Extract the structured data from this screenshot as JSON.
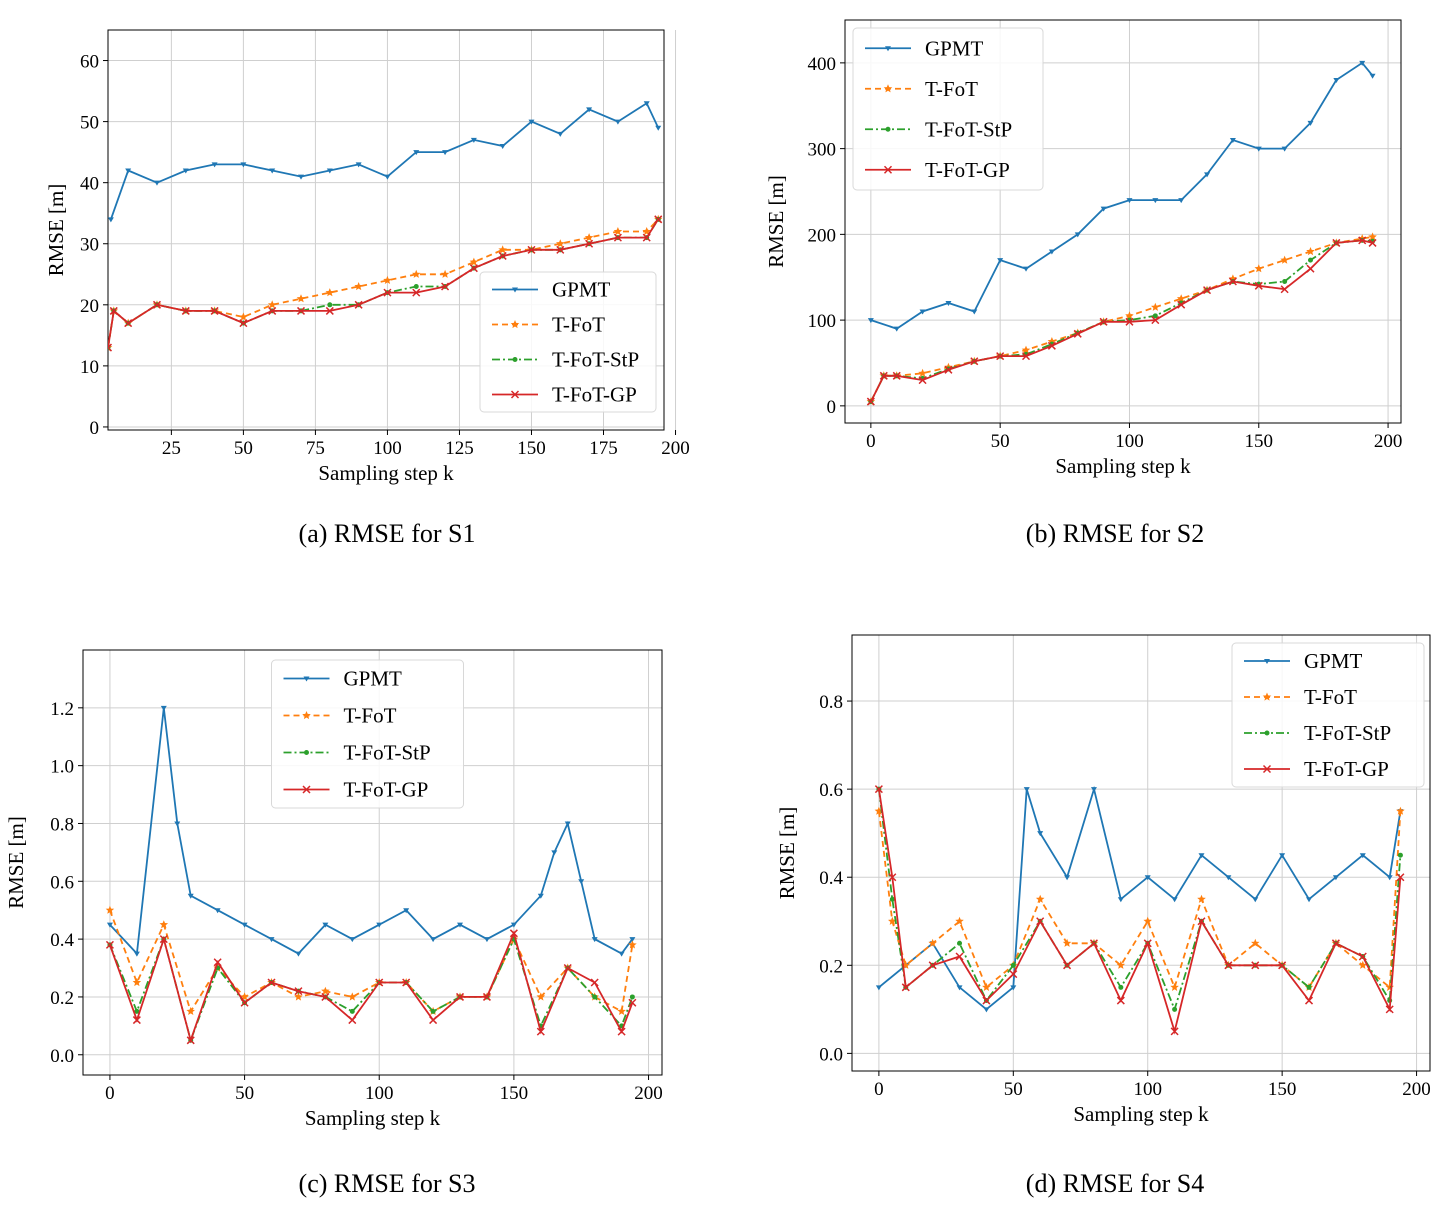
{
  "chart_data": [
    {
      "type": "line",
      "caption": "(a) RMSE for S1",
      "xlabel": "Sampling step  k",
      "ylabel": "RMSE [m]",
      "xlim": [
        3,
        196
      ],
      "ylim": [
        -0.5,
        65
      ],
      "xticks": [
        25,
        50,
        75,
        100,
        125,
        150,
        175,
        200
      ],
      "yticks": [
        0,
        10,
        20,
        30,
        40,
        50,
        60
      ],
      "legend": "lower-right",
      "grid": true,
      "colors": {
        "GPMT": "#1f77b4",
        "T-FoT": "#ff7f0e",
        "T-FoT-StP": "#2ca02c",
        "T-FoT-GP": "#d62728"
      },
      "series": [
        {
          "name": "GPMT",
          "x": [
            4,
            10,
            20,
            30,
            40,
            50,
            60,
            70,
            80,
            90,
            100,
            110,
            120,
            130,
            140,
            150,
            160,
            170,
            180,
            190,
            194
          ],
          "values": [
            34,
            42,
            40,
            42,
            43,
            43,
            42,
            41,
            42,
            43,
            41,
            45,
            45,
            47,
            46,
            50,
            48,
            52,
            50,
            53,
            49
          ]
        },
        {
          "name": "T-FoT",
          "x": [
            3,
            5,
            10,
            20,
            30,
            40,
            50,
            60,
            70,
            80,
            90,
            100,
            110,
            120,
            130,
            140,
            150,
            160,
            170,
            180,
            190,
            194
          ],
          "values": [
            13,
            19,
            17,
            20,
            19,
            19,
            18,
            20,
            21,
            22,
            23,
            24,
            25,
            25,
            27,
            29,
            29,
            30,
            31,
            32,
            32,
            34
          ]
        },
        {
          "name": "T-FoT-StP",
          "x": [
            3,
            5,
            10,
            20,
            30,
            40,
            50,
            60,
            70,
            80,
            90,
            100,
            110,
            120,
            130,
            140,
            150,
            160,
            170,
            180,
            190,
            194
          ],
          "values": [
            13,
            19,
            17,
            20,
            19,
            19,
            17,
            19,
            19,
            20,
            20,
            22,
            23,
            23,
            26,
            28,
            29,
            29,
            30,
            31,
            31,
            34
          ]
        },
        {
          "name": "T-FoT-GP",
          "x": [
            3,
            5,
            10,
            20,
            30,
            40,
            50,
            60,
            70,
            80,
            90,
            100,
            110,
            120,
            130,
            140,
            150,
            160,
            170,
            180,
            190,
            194
          ],
          "values": [
            13,
            19,
            17,
            20,
            19,
            19,
            17,
            19,
            19,
            19,
            20,
            22,
            22,
            23,
            26,
            28,
            29,
            29,
            30,
            31,
            31,
            34
          ]
        }
      ]
    },
    {
      "type": "line",
      "caption": "(b) RMSE for S2",
      "xlabel": "Sampling step  k",
      "ylabel": "RMSE [m]",
      "xlim": [
        -10,
        205
      ],
      "ylim": [
        -20,
        450
      ],
      "xticks": [
        0,
        50,
        100,
        150,
        200
      ],
      "yticks": [
        0,
        100,
        200,
        300,
        400
      ],
      "legend": "top-left",
      "grid": true,
      "colors": {
        "GPMT": "#1f77b4",
        "T-FoT": "#ff7f0e",
        "T-FoT-StP": "#2ca02c",
        "T-FoT-GP": "#d62728"
      },
      "series": [
        {
          "name": "GPMT",
          "x": [
            0,
            10,
            20,
            30,
            40,
            50,
            60,
            70,
            80,
            90,
            100,
            110,
            120,
            130,
            140,
            150,
            160,
            170,
            180,
            190,
            194
          ],
          "values": [
            100,
            90,
            110,
            120,
            110,
            170,
            160,
            180,
            200,
            230,
            240,
            240,
            240,
            270,
            310,
            300,
            300,
            330,
            380,
            400,
            385
          ]
        },
        {
          "name": "T-FoT",
          "x": [
            0,
            5,
            10,
            20,
            30,
            40,
            50,
            60,
            70,
            80,
            90,
            100,
            110,
            120,
            130,
            140,
            150,
            160,
            170,
            180,
            190,
            194
          ],
          "values": [
            5,
            35,
            35,
            38,
            45,
            52,
            58,
            65,
            75,
            85,
            98,
            105,
            115,
            125,
            135,
            148,
            160,
            170,
            180,
            190,
            195,
            197
          ]
        },
        {
          "name": "T-FoT-StP",
          "x": [
            0,
            5,
            10,
            20,
            30,
            40,
            50,
            60,
            70,
            80,
            90,
            100,
            110,
            120,
            130,
            140,
            150,
            160,
            170,
            180,
            190,
            194
          ],
          "values": [
            5,
            35,
            35,
            32,
            43,
            52,
            58,
            60,
            72,
            85,
            98,
            100,
            105,
            120,
            135,
            145,
            142,
            145,
            170,
            190,
            193,
            192
          ]
        },
        {
          "name": "T-FoT-GP",
          "x": [
            0,
            5,
            10,
            20,
            30,
            40,
            50,
            60,
            70,
            80,
            90,
            100,
            110,
            120,
            130,
            140,
            150,
            160,
            170,
            180,
            190,
            194
          ],
          "values": [
            5,
            35,
            35,
            30,
            42,
            52,
            58,
            58,
            70,
            84,
            98,
            98,
            100,
            118,
            135,
            145,
            140,
            136,
            160,
            190,
            193,
            190
          ]
        }
      ]
    },
    {
      "type": "line",
      "caption": "(c) RMSE for S3",
      "xlabel": "Sampling step  k",
      "ylabel": "RMSE [m]",
      "xlim": [
        -10,
        205
      ],
      "ylim": [
        -0.07,
        1.4
      ],
      "xticks": [
        0,
        50,
        100,
        150,
        200
      ],
      "yticks": [
        0.0,
        0.2,
        0.4,
        0.6,
        0.8,
        1.0,
        1.2
      ],
      "ytick_labels": [
        "0.0",
        "0.2",
        "0.4",
        "0.6",
        "0.8",
        "1.0",
        "1.2"
      ],
      "legend": "top-center",
      "grid": true,
      "colors": {
        "GPMT": "#1f77b4",
        "T-FoT": "#ff7f0e",
        "T-FoT-StP": "#2ca02c",
        "T-FoT-GP": "#d62728"
      },
      "series": [
        {
          "name": "GPMT",
          "x": [
            0,
            10,
            20,
            25,
            30,
            40,
            50,
            60,
            70,
            80,
            90,
            100,
            110,
            120,
            130,
            140,
            150,
            160,
            165,
            170,
            175,
            180,
            190,
            194
          ],
          "values": [
            0.45,
            0.35,
            1.2,
            0.8,
            0.55,
            0.5,
            0.45,
            0.4,
            0.35,
            0.45,
            0.4,
            0.45,
            0.5,
            0.4,
            0.45,
            0.4,
            0.45,
            0.55,
            0.7,
            0.8,
            0.6,
            0.4,
            0.35,
            0.4
          ]
        },
        {
          "name": "T-FoT",
          "x": [
            0,
            10,
            20,
            30,
            40,
            50,
            60,
            70,
            80,
            90,
            100,
            110,
            120,
            130,
            140,
            150,
            160,
            170,
            180,
            190,
            194
          ],
          "values": [
            0.5,
            0.25,
            0.45,
            0.15,
            0.3,
            0.2,
            0.25,
            0.2,
            0.22,
            0.2,
            0.25,
            0.25,
            0.15,
            0.2,
            0.2,
            0.4,
            0.2,
            0.3,
            0.2,
            0.15,
            0.38
          ]
        },
        {
          "name": "T-FoT-StP",
          "x": [
            0,
            10,
            20,
            30,
            40,
            50,
            60,
            70,
            80,
            90,
            100,
            110,
            120,
            130,
            140,
            150,
            160,
            170,
            180,
            190,
            194
          ],
          "values": [
            0.38,
            0.15,
            0.4,
            0.05,
            0.3,
            0.18,
            0.25,
            0.22,
            0.2,
            0.15,
            0.25,
            0.25,
            0.15,
            0.2,
            0.2,
            0.4,
            0.1,
            0.3,
            0.2,
            0.1,
            0.2
          ]
        },
        {
          "name": "T-FoT-GP",
          "x": [
            0,
            10,
            20,
            30,
            40,
            50,
            60,
            70,
            80,
            90,
            100,
            110,
            120,
            130,
            140,
            150,
            160,
            170,
            180,
            190,
            194
          ],
          "values": [
            0.38,
            0.12,
            0.4,
            0.05,
            0.32,
            0.18,
            0.25,
            0.22,
            0.2,
            0.12,
            0.25,
            0.25,
            0.12,
            0.2,
            0.2,
            0.42,
            0.08,
            0.3,
            0.25,
            0.08,
            0.18
          ]
        }
      ]
    },
    {
      "type": "line",
      "caption": "(d) RMSE for S4",
      "xlabel": "Sampling step  k",
      "ylabel": "RMSE [m]",
      "xlim": [
        -10,
        205
      ],
      "ylim": [
        -0.04,
        0.95
      ],
      "xticks": [
        0,
        50,
        100,
        150,
        200
      ],
      "yticks": [
        0.0,
        0.2,
        0.4,
        0.6,
        0.8
      ],
      "ytick_labels": [
        "0.0",
        "0.2",
        "0.4",
        "0.6",
        "0.8"
      ],
      "legend": "top-right",
      "grid": true,
      "colors": {
        "GPMT": "#1f77b4",
        "T-FoT": "#ff7f0e",
        "T-FoT-StP": "#2ca02c",
        "T-FoT-GP": "#d62728"
      },
      "series": [
        {
          "name": "GPMT",
          "x": [
            0,
            10,
            20,
            30,
            40,
            50,
            55,
            60,
            70,
            80,
            90,
            100,
            110,
            120,
            130,
            140,
            150,
            160,
            170,
            180,
            190,
            194
          ],
          "values": [
            0.15,
            0.2,
            0.25,
            0.15,
            0.1,
            0.15,
            0.6,
            0.5,
            0.4,
            0.6,
            0.35,
            0.4,
            0.35,
            0.45,
            0.4,
            0.35,
            0.45,
            0.35,
            0.4,
            0.45,
            0.4,
            0.55
          ]
        },
        {
          "name": "T-FoT",
          "x": [
            0,
            5,
            10,
            20,
            30,
            40,
            50,
            60,
            70,
            80,
            90,
            100,
            110,
            120,
            130,
            140,
            150,
            160,
            170,
            180,
            190,
            194
          ],
          "values": [
            0.55,
            0.3,
            0.2,
            0.25,
            0.3,
            0.15,
            0.2,
            0.35,
            0.25,
            0.25,
            0.2,
            0.3,
            0.15,
            0.35,
            0.2,
            0.25,
            0.2,
            0.15,
            0.25,
            0.2,
            0.15,
            0.55
          ]
        },
        {
          "name": "T-FoT-StP",
          "x": [
            0,
            5,
            10,
            20,
            30,
            40,
            50,
            60,
            70,
            80,
            90,
            100,
            110,
            120,
            130,
            140,
            150,
            160,
            170,
            180,
            190,
            194
          ],
          "values": [
            0.6,
            0.35,
            0.15,
            0.2,
            0.25,
            0.12,
            0.2,
            0.3,
            0.2,
            0.25,
            0.15,
            0.25,
            0.1,
            0.3,
            0.2,
            0.2,
            0.2,
            0.15,
            0.25,
            0.22,
            0.12,
            0.45
          ]
        },
        {
          "name": "T-FoT-GP",
          "x": [
            0,
            5,
            10,
            20,
            30,
            40,
            50,
            60,
            70,
            80,
            90,
            100,
            110,
            120,
            130,
            140,
            150,
            160,
            170,
            180,
            190,
            194
          ],
          "values": [
            0.6,
            0.4,
            0.15,
            0.2,
            0.22,
            0.12,
            0.18,
            0.3,
            0.2,
            0.25,
            0.12,
            0.25,
            0.05,
            0.3,
            0.2,
            0.2,
            0.2,
            0.12,
            0.25,
            0.22,
            0.1,
            0.4
          ]
        }
      ]
    }
  ]
}
